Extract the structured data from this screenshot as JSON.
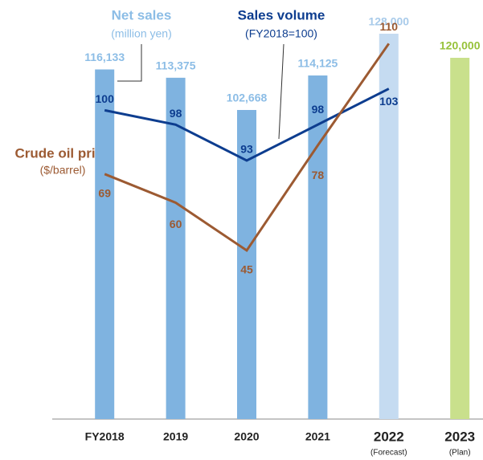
{
  "chart_data": {
    "type": "bar",
    "categories": [
      "FY2018",
      "2019",
      "2020",
      "2021",
      "2022",
      "2023"
    ],
    "category_notes": [
      null,
      null,
      null,
      null,
      "(Forecast)",
      "(Plan)"
    ],
    "series": [
      {
        "name": "Net sales",
        "unit": "(million yen)",
        "type": "bar",
        "colors": [
          "#7fb3e0",
          "#7fb3e0",
          "#7fb3e0",
          "#7fb3e0",
          "#c5dbf1",
          "#c9e08c"
        ],
        "label_colors": [
          "#8cbde6",
          "#8cbde6",
          "#8cbde6",
          "#8cbde6",
          "#a9cbea",
          "#97c23a"
        ],
        "values": [
          116133,
          113375,
          102668,
          114125,
          128000,
          120000
        ],
        "value_labels": [
          "116,133",
          "113,375",
          "102,668",
          "114,125",
          "128,000",
          "120,000"
        ]
      },
      {
        "name": "Sales volume",
        "unit": "(FY2018=100)",
        "type": "line",
        "axis": "y3",
        "color": "#0d3d8f",
        "values": [
          100,
          98,
          93,
          98,
          103,
          null
        ]
      },
      {
        "name": "Crude oil price",
        "unit": "($/barrel)",
        "type": "line",
        "axis": "y2",
        "color": "#9c5a32",
        "values": [
          69,
          60,
          45,
          78,
          110,
          null
        ]
      }
    ],
    "ylim": [
      0,
      130000
    ],
    "y2lim": [
      -8,
      115
    ],
    "y3lim": [
      57,
      111.5
    ]
  }
}
